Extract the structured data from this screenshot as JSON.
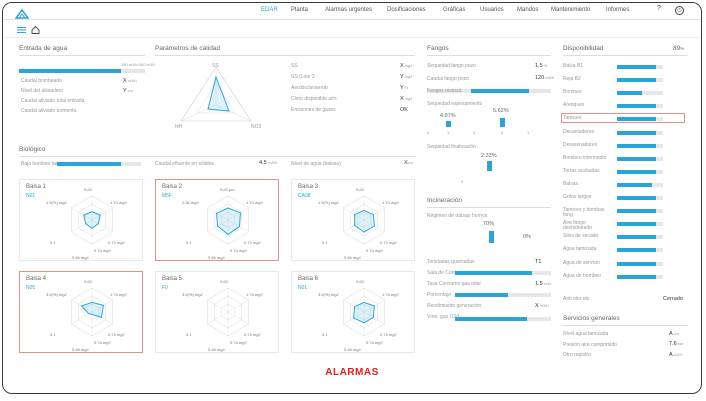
{
  "nav": {
    "items": [
      "EDAR",
      "Planta",
      "Alarmas urgentes",
      "Dosificaciones",
      "Gráficas",
      "Usuarios",
      "Mandos",
      "Mantenimiento",
      "Informes"
    ],
    "active_index": 0,
    "help": "?",
    "power": "⏻"
  },
  "entrada": {
    "title": "Entrada de agua",
    "bar_label": "150 m3/h  300 m3/h",
    "rows": [
      {
        "label": "Caudal bombeado",
        "value": "X",
        "unit": "m3/h"
      },
      {
        "label": "Nivel del aliviadero",
        "value": "Y",
        "unit": "cm"
      },
      {
        "label": "Caudal aliviado total entrada",
        "value": "",
        "unit": ""
      },
      {
        "label": "Caudal aliviado tormenta",
        "value": "",
        "unit": ""
      }
    ]
  },
  "calidad": {
    "title": "Parámetros de calidad",
    "radar_labels": [
      "SS",
      "NH",
      "NO3"
    ],
    "rows": [
      {
        "label": "SS",
        "value": "X",
        "unit": "mg/l"
      },
      {
        "label": "SS (Lote 2",
        "value": "Y",
        "unit": "mg/l"
      },
      {
        "label": "Aerobic/anaerob",
        "value": "Y",
        "unit": "%"
      },
      {
        "label": "Cloro disponible a/m",
        "value": "X",
        "unit": "mg/l"
      },
      {
        "label": "Emisiones de gases",
        "value": "OK",
        "unit": ""
      }
    ]
  },
  "fangos": {
    "title": "Fangos",
    "rows": [
      {
        "label": "Sequedad fango pozo",
        "value": "1.5",
        "unit": "%"
      },
      {
        "label": "Caudal fango pozo",
        "value": "120",
        "unit": "m3/h"
      },
      {
        "label": "Fangos recircul.",
        "value": "",
        "unit": ""
      },
      {
        "label": "Sequedad espesamiento",
        "value": "",
        "unit": ""
      }
    ],
    "pct1": "4.97%",
    "pct2": "5.62%",
    "pct3": "2.33%",
    "sub3": "Sequedad finalización",
    "ticks": [
      "0",
      "1",
      "0",
      "0",
      "1",
      "0"
    ]
  },
  "incineracion": {
    "title": "Incineración",
    "sub": "Régimen de trabajo hornos",
    "pct_a": "70%",
    "pct_b": "0%",
    "label_a": "",
    "label_b": "",
    "rows": [
      {
        "label": "Toneladas quemadas",
        "value": "T1",
        "unit": ""
      },
      {
        "label": "Sala de Control",
        "value": "",
        "unit": ""
      },
      {
        "label": "Tasa Consumo gas total",
        "value": "1.5",
        "unit": "m3/t"
      },
      {
        "label": "Porcentaje",
        "value": "",
        "unit": ""
      },
      {
        "label": "Rendimiento generación",
        "value": "X",
        "unit": "m3/h"
      },
      {
        "label": "Vmn. gas O2/t",
        "value": "",
        "unit": ""
      }
    ]
  },
  "disponibilidad": {
    "title": "Disponibilidad",
    "pct": "89",
    "pct_unit": "%",
    "items": [
      {
        "label": "Balsa B1",
        "fill": 0.85
      },
      {
        "label": "Reja B2",
        "fill": 0.85
      },
      {
        "label": "Bombeo",
        "fill": 0.55
      },
      {
        "label": "Arenques",
        "fill": 0.85
      },
      {
        "label": "Tamices",
        "fill": 0.85
      },
      {
        "label": "Decantadores",
        "fill": 0.85
      },
      {
        "label": "Desarenadores",
        "fill": 0.85
      },
      {
        "label": "Bombeo intermedio",
        "fill": 0.85
      },
      {
        "label": "Tortas acabadas",
        "fill": 0.85
      },
      {
        "label": "Balsas",
        "fill": 0.75
      },
      {
        "label": "Grifos largos",
        "fill": 0.85
      },
      {
        "label": "Tamices y bombas fang",
        "fill": 0.85
      },
      {
        "label": "Aire fango deshidratado",
        "fill": 0.85
      },
      {
        "label": "Silos de secado",
        "fill": 0.85
      },
      {
        "label": "Agua tamizada",
        "fill": 0.85
      },
      {
        "label": "Agua de servicio",
        "fill": 0.85
      },
      {
        "label": "Agua de bombeo",
        "fill": 0.85
      }
    ],
    "footer_label": "Anti olor olo",
    "footer_value": "Cerrado",
    "highlight_index": 4
  },
  "servicios": {
    "title": "Servicios generales",
    "rows": [
      {
        "label": "Nivel agua tamizada",
        "value": "A",
        "unit": "cm"
      },
      {
        "label": "Presión aire comprimido",
        "value": "7.6",
        "unit": "bar"
      },
      {
        "label": "Otro registro",
        "value": "A",
        "unit": "m3/h"
      }
    ]
  },
  "biologico": {
    "title": "Biológico",
    "bar_label": "Bajo bombeo fan",
    "mid_label": "Caudal efluente en sólidos",
    "mid_value": "4.5",
    "mid_unit": "m3/h",
    "right_label": "Nivel de agua (balsas)",
    "right_value": "X",
    "right_unit": "cm",
    "basins": [
      {
        "name": "Balsa 1",
        "tag": "N01",
        "top": "0.63",
        "right": "1.74 mg/l",
        "left": "1.5(%) mg/l",
        "bleft": "9.1",
        "bmid": "0.74 mg/l",
        "bright": "0.74 mg/l",
        "bottom": "0.46 mg/l",
        "shape": [
          0.35,
          0.4,
          0.3,
          0.35,
          0.3,
          0.4
        ]
      },
      {
        "name": "Balsa 2",
        "tag": "M5F",
        "top": "0.63 μm",
        "right": "1.74 mg/l",
        "left": "2.56 mg/l",
        "bleft": "9.1",
        "bmid": "0.74 mg/l",
        "bright": "0.74 mg/l",
        "bottom": "0.46 mg/l",
        "shape": [
          0.5,
          0.6,
          0.55,
          0.6,
          0.5,
          0.55
        ]
      },
      {
        "name": "Balsa 3",
        "tag": "CA08",
        "top": "0.63",
        "right": "1.74 mg/l",
        "left": "1.5(%) mg/l",
        "bleft": "9.1",
        "bmid": "0.74 mg/l",
        "bright": "0.74 mg/l",
        "bottom": "0.46 mg/l",
        "shape": [
          0.4,
          0.45,
          0.5,
          0.5,
          0.45,
          0.45
        ]
      },
      {
        "name": "Balsa 4",
        "tag": "N05",
        "top": "0.63",
        "right": "1.74 mg/l",
        "left": "3.5(%) mg/l",
        "bleft": "9.1",
        "bmid": "0.74 mg/l",
        "bright": "0.74 mg/l",
        "bottom": "0.46 mg/l",
        "shape": [
          0.4,
          0.55,
          0.45,
          0.1,
          0.15,
          0.5
        ]
      },
      {
        "name": "Balsa 5",
        "tag": "F0",
        "top": "0.63",
        "right": "1.74 mg/l",
        "left": "3.5(%) mg/l",
        "bleft": "9.1",
        "bmid": "0.74 mg/l",
        "bright": "0.74 mg/l",
        "bottom": "0.46 mg/l",
        "shape": [
          0,
          0,
          0,
          0,
          0,
          0
        ]
      },
      {
        "name": "Balsa 6",
        "tag": "N01",
        "top": "0.63",
        "right": "1.74 mg/l",
        "left": "3.5(%) mg/l",
        "bleft": "9.1",
        "bmid": "0.74 mg/l",
        "bright": "0.74 mg/l",
        "bottom": "0.46 mg/l",
        "shape": [
          0.4,
          0.5,
          0.45,
          0.45,
          0.5,
          0.45
        ]
      }
    ]
  },
  "alarm_banner": "ALARMAS",
  "colors": {
    "accent": "#29a6d9",
    "alarm": "#e02020",
    "selection": "#e48f8f"
  }
}
